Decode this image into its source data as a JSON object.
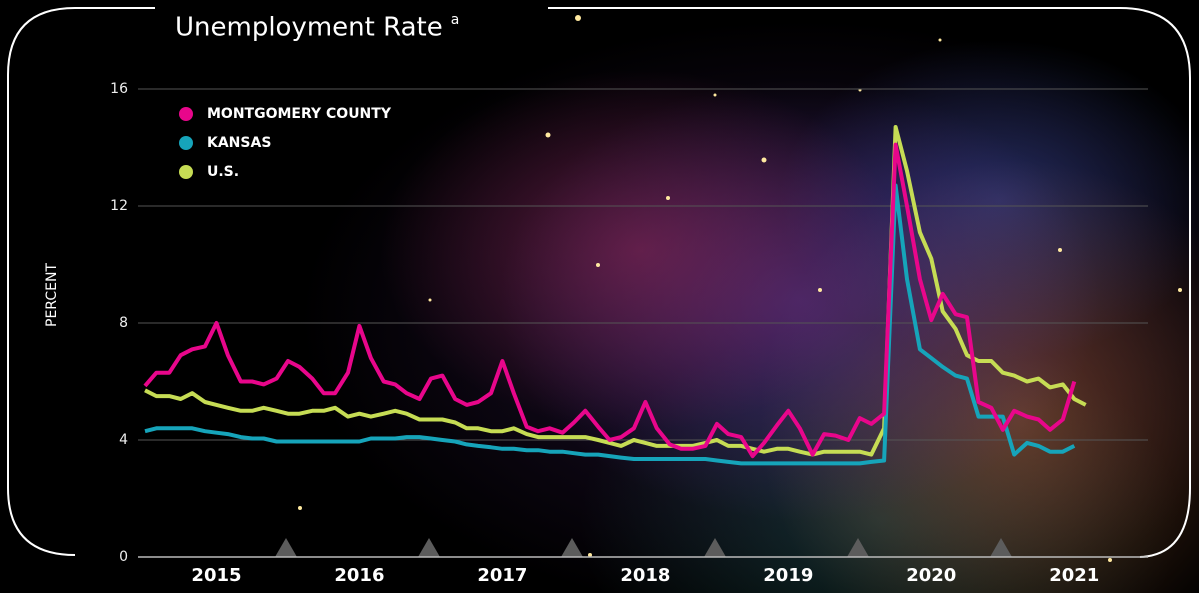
{
  "chart_data": {
    "type": "line",
    "title": "Unemployment Rate",
    "title_note": "a",
    "y_label": "PERCENT",
    "x": [
      2015,
      2015.08,
      2015.17,
      2015.25,
      2015.33,
      2015.42,
      2015.5,
      2015.58,
      2015.67,
      2015.75,
      2015.83,
      2015.92,
      2016,
      2016.08,
      2016.17,
      2016.25,
      2016.33,
      2016.42,
      2016.5,
      2016.58,
      2016.67,
      2016.75,
      2016.83,
      2016.92,
      2017,
      2017.08,
      2017.17,
      2017.25,
      2017.33,
      2017.42,
      2017.5,
      2017.58,
      2017.67,
      2017.75,
      2017.83,
      2017.92,
      2018,
      2018.08,
      2018.17,
      2018.25,
      2018.33,
      2018.42,
      2018.5,
      2018.58,
      2018.67,
      2018.75,
      2018.83,
      2018.92,
      2019,
      2019.08,
      2019.17,
      2019.25,
      2019.33,
      2019.42,
      2019.5,
      2019.58,
      2019.67,
      2019.75,
      2019.83,
      2019.92,
      2020,
      2020.08,
      2020.17,
      2020.25,
      2020.33,
      2020.42,
      2020.5,
      2020.58,
      2020.67,
      2020.75,
      2020.83,
      2020.92,
      2021,
      2021.08,
      2021.17,
      2021.25,
      2021.33,
      2021.42,
      2021.5,
      2021.58
    ],
    "series": [
      {
        "name": "MONTGOMERY COUNTY",
        "color": "#e8068b",
        "values": [
          5.85,
          6.3,
          6.3,
          6.9,
          7.1,
          7.2,
          8.0,
          6.9,
          6.0,
          6.0,
          5.9,
          6.1,
          6.7,
          6.5,
          6.1,
          5.6,
          5.6,
          6.3,
          7.9,
          6.8,
          6.0,
          5.9,
          5.6,
          5.4,
          6.1,
          6.2,
          5.4,
          5.2,
          5.3,
          5.6,
          6.7,
          5.6,
          4.45,
          4.3,
          4.4,
          4.25,
          4.6,
          5.0,
          4.45,
          4.0,
          4.1,
          4.4,
          5.3,
          4.4,
          3.85,
          3.7,
          3.7,
          3.8,
          4.55,
          4.2,
          4.1,
          3.45,
          3.9,
          4.5,
          5.0,
          4.4,
          3.5,
          4.2,
          4.15,
          4.0,
          4.75,
          4.55,
          4.9,
          14.1,
          12.0,
          9.5,
          8.1,
          9.0,
          8.3,
          8.2,
          5.3,
          5.1,
          4.35,
          5.0,
          4.8,
          4.7,
          4.35,
          4.7,
          6.0,
          null
        ]
      },
      {
        "name": "KANSAS",
        "color": "#16a4ba",
        "values": [
          4.3,
          4.4,
          4.4,
          4.4,
          4.4,
          4.3,
          4.25,
          4.2,
          4.1,
          4.05,
          4.05,
          3.95,
          3.95,
          3.95,
          3.95,
          3.95,
          3.95,
          3.95,
          3.95,
          4.05,
          4.05,
          4.05,
          4.1,
          4.1,
          4.05,
          4.0,
          3.95,
          3.85,
          3.8,
          3.75,
          3.7,
          3.7,
          3.65,
          3.65,
          3.6,
          3.6,
          3.55,
          3.5,
          3.5,
          3.45,
          3.4,
          3.35,
          3.35,
          3.35,
          3.35,
          3.35,
          3.35,
          3.35,
          3.3,
          3.25,
          3.2,
          3.2,
          3.2,
          3.2,
          3.2,
          3.2,
          3.2,
          3.2,
          3.2,
          3.2,
          3.2,
          3.25,
          3.3,
          12.7,
          9.5,
          7.1,
          6.8,
          6.5,
          6.2,
          6.1,
          4.8,
          4.8,
          4.8,
          3.5,
          3.9,
          3.8,
          3.6,
          3.6,
          3.8,
          null
        ]
      },
      {
        "name": "U.S.",
        "color": "#c6dc54",
        "values": [
          5.7,
          5.5,
          5.5,
          5.4,
          5.6,
          5.3,
          5.2,
          5.1,
          5.0,
          5.0,
          5.1,
          5.0,
          4.9,
          4.9,
          5.0,
          5.0,
          5.1,
          4.8,
          4.9,
          4.8,
          4.9,
          5.0,
          4.9,
          4.7,
          4.7,
          4.7,
          4.6,
          4.4,
          4.4,
          4.3,
          4.3,
          4.4,
          4.2,
          4.1,
          4.1,
          4.1,
          4.1,
          4.1,
          4.0,
          3.9,
          3.8,
          4.0,
          3.9,
          3.8,
          3.8,
          3.8,
          3.8,
          3.9,
          4.0,
          3.8,
          3.8,
          3.7,
          3.6,
          3.7,
          3.7,
          3.6,
          3.5,
          3.6,
          3.6,
          3.6,
          3.6,
          3.5,
          4.4,
          14.7,
          13.2,
          11.1,
          10.2,
          8.4,
          7.8,
          6.9,
          6.7,
          6.7,
          6.3,
          6.2,
          6.0,
          6.1,
          5.8,
          5.9,
          5.4,
          5.2
        ]
      }
    ],
    "xlim": [
      2015,
      2021.75
    ],
    "xticks": [
      {
        "value": 2015.5,
        "label": "2015"
      },
      {
        "value": 2016.5,
        "label": "2016"
      },
      {
        "value": 2017.5,
        "label": "2017"
      },
      {
        "value": 2018.5,
        "label": "2018"
      },
      {
        "value": 2019.5,
        "label": "2019"
      },
      {
        "value": 2020.5,
        "label": "2020"
      },
      {
        "value": 2021.5,
        "label": "2021"
      }
    ],
    "ylim": [
      0,
      16
    ],
    "yticks": [
      0,
      4,
      8,
      12,
      16
    ],
    "grid": true
  }
}
